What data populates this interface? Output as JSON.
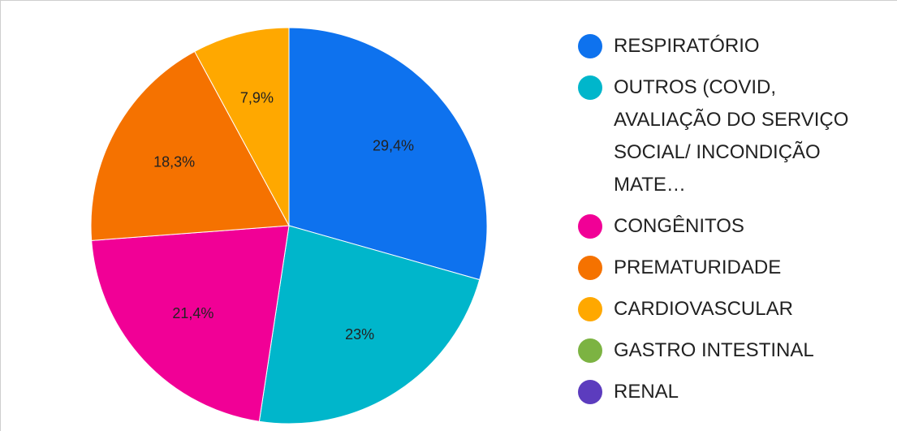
{
  "chart_data": {
    "type": "pie",
    "categories": [
      "RESPIRATÓRIO",
      "OUTROS (COVID, AVALIAÇÃO DO SERVIÇO SOCIAL/ INCONDIÇÃO MATE…",
      "CONGÊNITOS",
      "PREMATURIDADE",
      "CARDIOVASCULAR",
      "GASTRO INTESTINAL",
      "RENAL"
    ],
    "values": [
      29.4,
      23,
      21.4,
      18.3,
      7.9,
      0,
      0
    ],
    "value_labels": [
      "29,4%",
      "23%",
      "21,4%",
      "18,3%",
      "7,9%",
      null,
      null
    ],
    "colors": [
      "#0e72ee",
      "#00b6cb",
      "#f10096",
      "#f57200",
      "#ffa800",
      "#7cb342",
      "#5c3cbe"
    ],
    "legend": "right"
  }
}
